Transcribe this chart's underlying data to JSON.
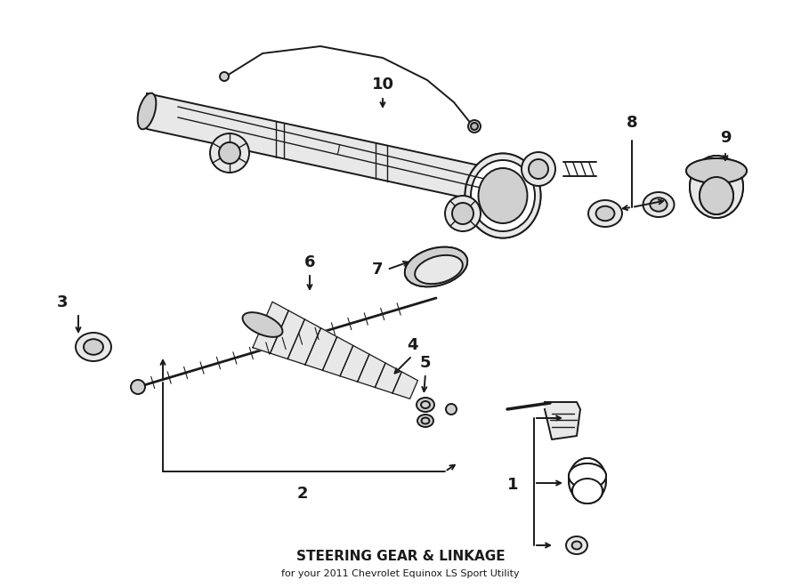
{
  "title": "STEERING GEAR & LINKAGE",
  "subtitle": "for your 2011 Chevrolet Equinox LS Sport Utility",
  "bg_color": "#ffffff",
  "line_color": "#1a1a1a",
  "fig_width": 9.0,
  "fig_height": 6.61,
  "dpi": 100
}
